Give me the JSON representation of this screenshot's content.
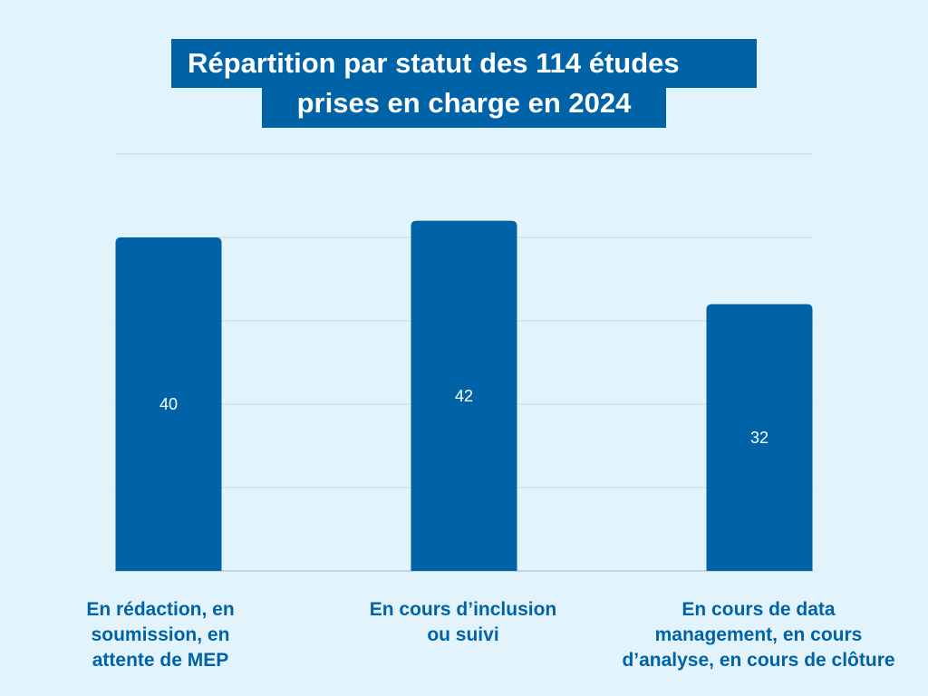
{
  "title": {
    "line1": "Répartition par statut des 114 études",
    "line2": "prises en charge en 2024"
  },
  "colors": {
    "background": "#e3f3fb",
    "bar": "#0063a8",
    "grid": "#c8d8e0",
    "bar_label": "#ffffff",
    "category_label": "#0063a8"
  },
  "chart_data": {
    "type": "bar",
    "title": "Répartition par statut des 114 études prises en charge en 2024",
    "categories": [
      "En rédaction, en soumission, en attente de MEP",
      "En cours d’inclusion ou suivi",
      "En cours de data management, en cours d’analyse, en cours de clôture"
    ],
    "category_lines": [
      [
        "En rédaction, en",
        "soumission, en",
        "attente de MEP"
      ],
      [
        "En cours d’inclusion",
        "ou suivi"
      ],
      [
        "En cours de data",
        "management, en cours",
        "d’analyse, en cours de clôture"
      ]
    ],
    "values": [
      40,
      42,
      32
    ],
    "ylim": [
      0,
      50
    ],
    "grid": true,
    "xlabel": "",
    "ylabel": ""
  }
}
